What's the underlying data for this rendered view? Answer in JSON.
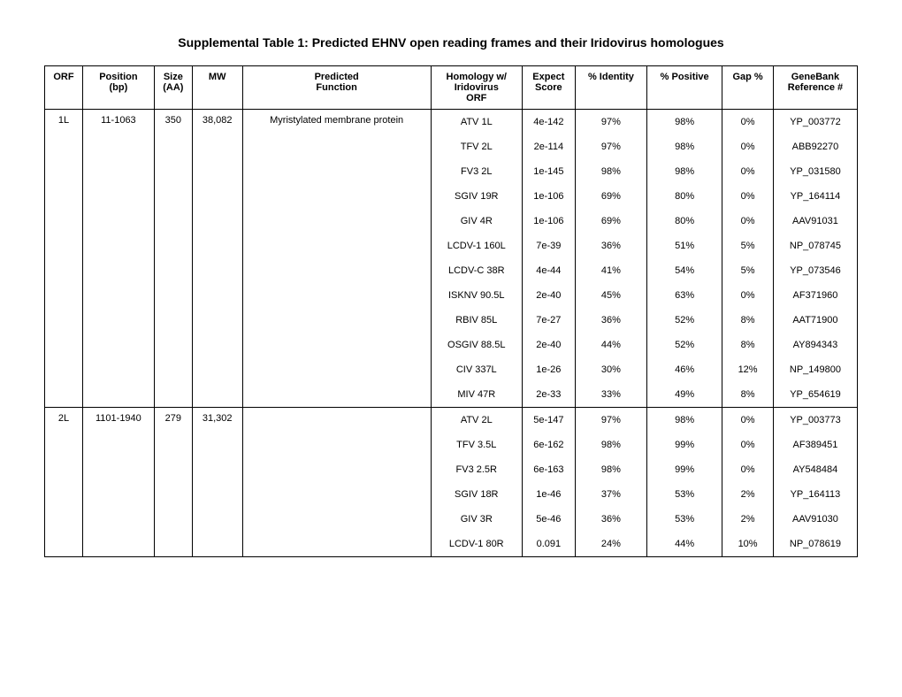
{
  "title": "Supplemental Table 1: Predicted EHNV open reading frames and their Iridovirus homologues",
  "columns": [
    "ORF",
    "Position (bp)",
    "Size (AA)",
    "MW",
    "Predicted Function",
    "Homology w/ Iridovirus ORF",
    "Expect Score",
    "% Identity",
    "% Positive",
    "Gap %",
    "GeneBank Reference #"
  ],
  "groups": [
    {
      "orf": "1L",
      "position": "11-1063",
      "size": "350",
      "mw": "38,082",
      "function": "Myristylated membrane protein",
      "rows": [
        {
          "homology": "ATV 1L",
          "expect": "4e-142",
          "identity": "97%",
          "positive": "98%",
          "gap": "0%",
          "ref": "YP_003772"
        },
        {
          "homology": "TFV 2L",
          "expect": "2e-114",
          "identity": "97%",
          "positive": "98%",
          "gap": "0%",
          "ref": "ABB92270"
        },
        {
          "homology": "FV3 2L",
          "expect": "1e-145",
          "identity": "98%",
          "positive": "98%",
          "gap": "0%",
          "ref": "YP_031580"
        },
        {
          "homology": "SGIV 19R",
          "expect": "1e-106",
          "identity": "69%",
          "positive": "80%",
          "gap": "0%",
          "ref": "YP_164114"
        },
        {
          "homology": "GIV 4R",
          "expect": "1e-106",
          "identity": "69%",
          "positive": "80%",
          "gap": "0%",
          "ref": "AAV91031"
        },
        {
          "homology": "LCDV-1 160L",
          "expect": "7e-39",
          "identity": "36%",
          "positive": "51%",
          "gap": "5%",
          "ref": "NP_078745"
        },
        {
          "homology": "LCDV-C 38R",
          "expect": "4e-44",
          "identity": "41%",
          "positive": "54%",
          "gap": "5%",
          "ref": "YP_073546"
        },
        {
          "homology": "ISKNV 90.5L",
          "expect": "2e-40",
          "identity": "45%",
          "positive": "63%",
          "gap": "0%",
          "ref": "AF371960"
        },
        {
          "homology": "RBIV 85L",
          "expect": "7e-27",
          "identity": "36%",
          "positive": "52%",
          "gap": "8%",
          "ref": "AAT71900"
        },
        {
          "homology": "OSGIV 88.5L",
          "expect": "2e-40",
          "identity": "44%",
          "positive": "52%",
          "gap": "8%",
          "ref": "AY894343"
        },
        {
          "homology": "CIV 337L",
          "expect": "1e-26",
          "identity": "30%",
          "positive": "46%",
          "gap": "12%",
          "ref": "NP_149800"
        },
        {
          "homology": "MIV 47R",
          "expect": "2e-33",
          "identity": "33%",
          "positive": "49%",
          "gap": "8%",
          "ref": "YP_654619"
        }
      ]
    },
    {
      "orf": "2L",
      "position": "1101-1940",
      "size": "279",
      "mw": "31,302",
      "function": "",
      "rows": [
        {
          "homology": "ATV 2L",
          "expect": "5e-147",
          "identity": "97%",
          "positive": "98%",
          "gap": "0%",
          "ref": "YP_003773"
        },
        {
          "homology": "TFV 3.5L",
          "expect": "6e-162",
          "identity": "98%",
          "positive": "99%",
          "gap": "0%",
          "ref": "AF389451"
        },
        {
          "homology": "FV3 2.5R",
          "expect": "6e-163",
          "identity": "98%",
          "positive": "99%",
          "gap": "0%",
          "ref": "AY548484"
        },
        {
          "homology": "SGIV 18R",
          "expect": "1e-46",
          "identity": "37%",
          "positive": "53%",
          "gap": "2%",
          "ref": "YP_164113"
        },
        {
          "homology": "GIV 3R",
          "expect": "5e-46",
          "identity": "36%",
          "positive": "53%",
          "gap": "2%",
          "ref": "AAV91030"
        },
        {
          "homology": "LCDV-1 80R",
          "expect": "0.091",
          "identity": "24%",
          "positive": "44%",
          "gap": "10%",
          "ref": "NP_078619"
        }
      ]
    }
  ]
}
